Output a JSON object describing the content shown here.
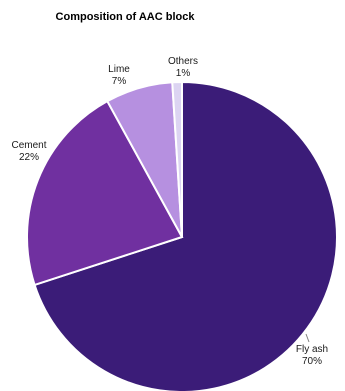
{
  "chart_data": {
    "type": "pie",
    "title": "Composition of AAC block",
    "categories": [
      "Fly ash",
      "Cement",
      "Lime",
      "Others"
    ],
    "values": [
      70,
      22,
      7,
      1
    ],
    "value_labels": [
      "70%",
      "22%",
      "7%",
      "1%"
    ],
    "colors": [
      "#3b1c78",
      "#7030a0",
      "#b690e0",
      "#dcd4f2"
    ],
    "start_angle_deg": 0,
    "direction": "clockwise",
    "slice_border_color": "#ffffff",
    "legend": "none"
  }
}
